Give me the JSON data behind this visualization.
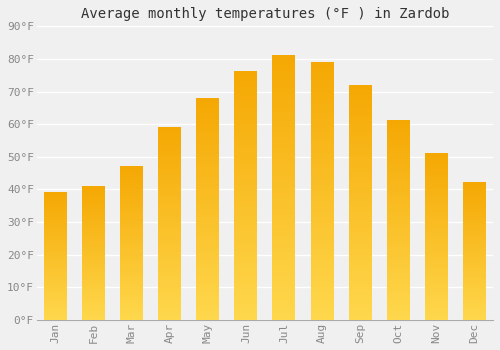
{
  "title": "Average monthly temperatures (°F ) in Zardob",
  "months": [
    "Jan",
    "Feb",
    "Mar",
    "Apr",
    "May",
    "Jun",
    "Jul",
    "Aug",
    "Sep",
    "Oct",
    "Nov",
    "Dec"
  ],
  "values": [
    39,
    41,
    47,
    59,
    68,
    76,
    81,
    79,
    72,
    61,
    51,
    42
  ],
  "bar_color_top": "#F5A800",
  "bar_color_bottom": "#FFD84D",
  "background_color": "#F0F0F0",
  "grid_color": "#FFFFFF",
  "ylim": [
    0,
    90
  ],
  "yticks": [
    0,
    10,
    20,
    30,
    40,
    50,
    60,
    70,
    80,
    90
  ],
  "title_fontsize": 10,
  "tick_fontsize": 8,
  "tick_color": "#888888",
  "spine_color": "#AAAAAA"
}
